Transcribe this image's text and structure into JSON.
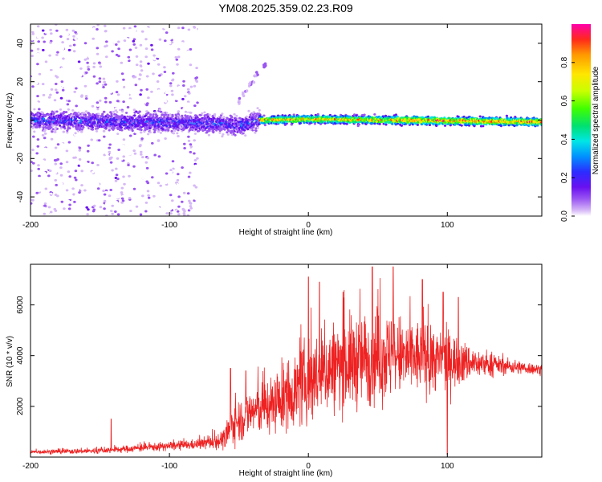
{
  "colors": {
    "snr_line": "#ee2222",
    "background": "#ffffff",
    "frame": "#000000",
    "colormap": [
      "#ffffff",
      "#d6b8f7",
      "#9a55f2",
      "#6a10f0",
      "#2b2cff",
      "#0090ff",
      "#00e6e6",
      "#00e070",
      "#40ff00",
      "#c8ff00",
      "#ffe600",
      "#ff9900",
      "#ff2a1a",
      "#ff00aa"
    ]
  },
  "chart_data": [
    {
      "type": "heatmap",
      "title": "YM08.2025.359.02.23.R09",
      "xlabel": "Height of straight line (km)",
      "ylabel": "Frequency (Hz)",
      "xlim": [
        -200,
        168
      ],
      "ylim": [
        -50,
        50
      ],
      "xticks": [
        -200,
        -100,
        0,
        100
      ],
      "yticks": [
        -40,
        -20,
        0,
        20,
        40
      ],
      "colorbar": {
        "label": "Normalized spectral amplitude",
        "range": [
          0,
          1
        ],
        "ticks": [
          "0.0",
          "0.2",
          "0.4",
          "0.6",
          "0.8"
        ]
      },
      "description_values": {
        "signal_band_center_hz": [
          {
            "x": -200,
            "f": 0
          },
          {
            "x": -60,
            "f": -2
          },
          {
            "x": -50,
            "f": -3
          },
          {
            "x": -35,
            "f": 0
          },
          {
            "x": 0,
            "f": 0.5
          },
          {
            "x": 168,
            "f": -1
          }
        ],
        "rising_branch": [
          {
            "x": -50,
            "f": 10
          },
          {
            "x": -40,
            "f": 20
          },
          {
            "x": -30,
            "f": 30
          }
        ],
        "noise_region_x": [
          -200,
          -78
        ]
      }
    },
    {
      "type": "line",
      "xlabel": "Height of straight line (km)",
      "ylabel": "SNR (10 * v/v)",
      "xlim": [
        -200,
        168
      ],
      "ylim": [
        0,
        7600
      ],
      "xticks": [
        -200,
        -100,
        0,
        100
      ],
      "yticks": [
        2000,
        4000,
        6000
      ],
      "series": [
        {
          "name": "SNR",
          "envelope": [
            {
              "x": -200,
              "mean": 200,
              "spread": 120
            },
            {
              "x": -150,
              "mean": 250,
              "spread": 180
            },
            {
              "x": -110,
              "mean": 400,
              "spread": 250
            },
            {
              "x": -80,
              "mean": 500,
              "spread": 300
            },
            {
              "x": -60,
              "mean": 700,
              "spread": 600
            },
            {
              "x": -55,
              "mean": 1300,
              "spread": 1200
            },
            {
              "x": -40,
              "mean": 1800,
              "spread": 1500
            },
            {
              "x": -20,
              "mean": 2200,
              "spread": 1800
            },
            {
              "x": 0,
              "mean": 3000,
              "spread": 2600
            },
            {
              "x": 20,
              "mean": 3600,
              "spread": 2800
            },
            {
              "x": 50,
              "mean": 4000,
              "spread": 2900
            },
            {
              "x": 80,
              "mean": 3900,
              "spread": 2200
            },
            {
              "x": 100,
              "mean": 3800,
              "spread": 1800
            },
            {
              "x": 120,
              "mean": 3700,
              "spread": 900
            },
            {
              "x": 140,
              "mean": 3600,
              "spread": 500
            },
            {
              "x": 168,
              "mean": 3450,
              "spread": 300
            }
          ],
          "peaks": [
            {
              "x": -142,
              "y": 1500
            },
            {
              "x": -56,
              "y": 3500
            },
            {
              "x": -45,
              "y": 3400
            },
            {
              "x": 0,
              "y": 7100
            },
            {
              "x": 8,
              "y": 6900
            },
            {
              "x": 25,
              "y": 6500
            },
            {
              "x": 46,
              "y": 7500
            },
            {
              "x": 61,
              "y": 7500
            },
            {
              "x": 82,
              "y": 7000
            },
            {
              "x": 97,
              "y": 6500
            },
            {
              "x": 100,
              "y": 100
            },
            {
              "x": 108,
              "y": 6300
            }
          ]
        }
      ]
    }
  ]
}
